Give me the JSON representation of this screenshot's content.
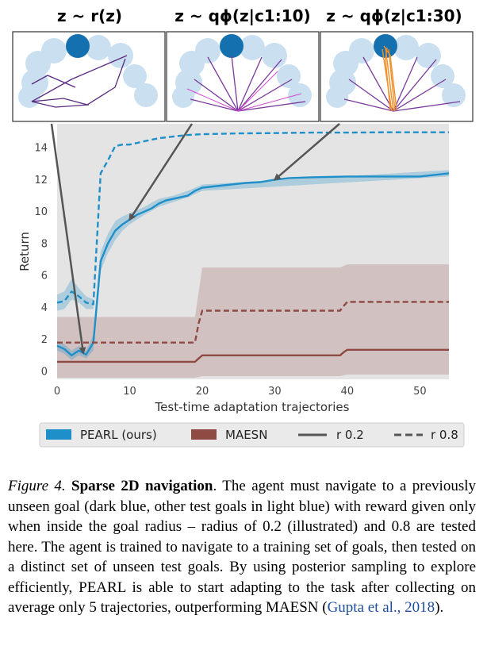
{
  "panels": [
    {
      "title": "z ~ r(z)"
    },
    {
      "title": "z ~ qϕ(z|c1:10)"
    },
    {
      "title": "z ~ qϕ(z|c1:30)"
    }
  ],
  "chart_data": {
    "type": "line",
    "xlabel": "Test-time adaptation trajectories",
    "ylabel": "Return",
    "xlim": [
      0,
      54
    ],
    "ylim": [
      -0.5,
      15.5
    ],
    "xticks": [
      "0",
      "10",
      "20",
      "30",
      "40",
      "50"
    ],
    "yticks": [
      "0",
      "2",
      "4",
      "6",
      "8",
      "10",
      "12",
      "14"
    ],
    "grid": false,
    "legend_position": "bottom",
    "colors": {
      "pearl": "#1f8fc9",
      "maesn": "#8e4a43",
      "background": "#e4e4e4"
    },
    "legend": [
      {
        "label": "PEARL (ours)",
        "kind": "patch",
        "color": "#1f8fc9"
      },
      {
        "label": "MAESN",
        "kind": "patch",
        "color": "#8e4a43"
      },
      {
        "label": "r 0.2",
        "kind": "solid",
        "color": "#555555"
      },
      {
        "label": "r 0.8",
        "kind": "dashed",
        "color": "#555555"
      }
    ],
    "series": [
      {
        "method": "PEARL",
        "radius": "0.8",
        "style": "dashed",
        "color": "#1f8fc9",
        "x": [
          0,
          1,
          2,
          3,
          4,
          5,
          6,
          7,
          8,
          9,
          10,
          12,
          14,
          16,
          18,
          20,
          25,
          30,
          35,
          40,
          45,
          50,
          54
        ],
        "y": [
          4.3,
          4.4,
          5.0,
          4.7,
          4.3,
          4.2,
          12.4,
          13.2,
          14.1,
          14.2,
          14.2,
          14.4,
          14.6,
          14.7,
          14.8,
          14.85,
          14.9,
          14.92,
          14.95,
          14.95,
          14.97,
          14.97,
          14.97
        ]
      },
      {
        "method": "PEARL",
        "radius": "0.2",
        "style": "solid",
        "color": "#1f8fc9",
        "x": [
          0,
          1,
          2,
          3,
          4,
          5,
          6,
          7,
          8,
          9,
          10,
          11,
          12,
          13,
          14,
          15,
          16,
          17,
          18,
          19,
          20,
          22,
          24,
          26,
          28,
          30,
          32,
          35,
          40,
          45,
          50,
          54
        ],
        "y": [
          1.6,
          1.4,
          1.0,
          1.3,
          1.05,
          1.8,
          6.9,
          8.0,
          8.8,
          9.2,
          9.5,
          9.8,
          10.0,
          10.2,
          10.5,
          10.7,
          10.8,
          10.9,
          11.0,
          11.3,
          11.5,
          11.6,
          11.7,
          11.8,
          11.85,
          12.0,
          12.1,
          12.15,
          12.2,
          12.2,
          12.2,
          12.4
        ]
      },
      {
        "method": "MAESN",
        "radius": "0.8",
        "style": "dashed",
        "color": "#8e4a43",
        "x": [
          0,
          19,
          19.5,
          20,
          39,
          39.5,
          40,
          54
        ],
        "y": [
          1.8,
          1.8,
          3.0,
          3.8,
          3.8,
          4.1,
          4.35,
          4.35
        ]
      },
      {
        "method": "MAESN",
        "radius": "0.2",
        "style": "solid",
        "color": "#8e4a43",
        "x": [
          0,
          19,
          19.5,
          20,
          39,
          39.5,
          40,
          54
        ],
        "y": [
          0.6,
          0.6,
          0.8,
          1.0,
          1.0,
          1.2,
          1.35,
          1.35
        ]
      }
    ],
    "bands": [
      {
        "method": "MAESN",
        "color": "#8e4a43",
        "x": [
          0,
          19,
          20,
          39,
          40,
          54
        ],
        "lower": [
          -0.4,
          -0.4,
          -0.3,
          -0.3,
          -0.2,
          -0.2
        ],
        "upper": [
          3.4,
          3.4,
          6.5,
          6.5,
          6.7,
          6.7
        ]
      },
      {
        "method": "PEARL",
        "color": "#1f8fc9",
        "x": [
          0,
          1,
          2,
          3,
          4,
          5,
          6,
          7,
          8,
          9,
          10,
          12,
          14,
          16,
          18,
          20,
          54
        ],
        "lower": [
          1.3,
          1.1,
          0.7,
          1.0,
          0.8,
          1.3,
          6.3,
          7.4,
          8.2,
          8.8,
          9.2,
          9.8,
          10.3,
          10.6,
          10.9,
          11.3,
          12.2
        ],
        "upper": [
          1.9,
          1.7,
          1.3,
          1.6,
          1.3,
          2.3,
          7.5,
          8.6,
          9.4,
          9.7,
          9.9,
          10.3,
          10.8,
          11.0,
          11.3,
          11.7,
          12.6
        ]
      },
      {
        "method": "PEARL",
        "color": "#1f8fc9",
        "x": [
          0,
          1,
          2,
          3,
          4,
          5
        ],
        "lower": [
          3.8,
          3.9,
          4.5,
          4.3,
          3.9,
          3.9
        ],
        "upper": [
          4.8,
          5.0,
          5.8,
          5.2,
          4.7,
          4.5
        ]
      }
    ]
  },
  "caption": {
    "label": "Figure 4.",
    "title": "Sparse 2D navigation",
    "text": ". The agent must navigate to a previously unseen goal (dark blue, other test goals in light blue) with reward given only when inside the goal radius – radius of 0.2 (illustrated) and 0.8 are tested here. The agent is trained to navigate to a training set of goals, then tested on a distinct set of unseen test goals. By using posterior sampling to explore efficiently, PEARL is able to start adapting to the task after collecting on average only 5 trajectories, outperforming MAESN (",
    "citation": "Gupta et al., 2018",
    "end": ")."
  }
}
